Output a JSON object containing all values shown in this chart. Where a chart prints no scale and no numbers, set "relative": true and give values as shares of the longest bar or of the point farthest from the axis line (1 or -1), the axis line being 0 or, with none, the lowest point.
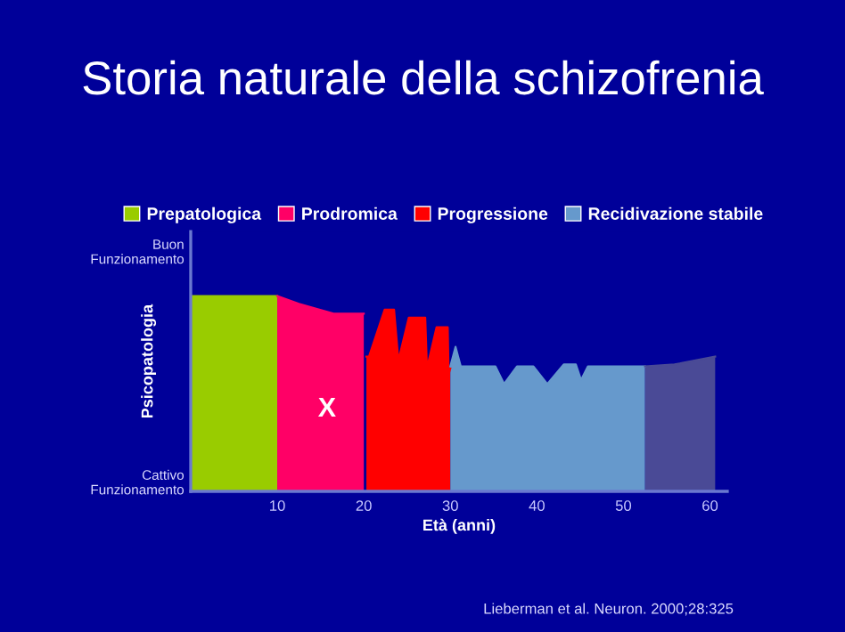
{
  "chart_data": {
    "type": "area",
    "title": "Storia naturale della schizofrenia",
    "xlabel": "Età (anni)",
    "ylabel": "Psicopatologia",
    "relative": true,
    "tick_labels": "x",
    "legend": "top",
    "grid": false,
    "xlim": [
      0,
      62
    ],
    "xticks": [
      {
        "value": 10,
        "label": "10"
      },
      {
        "value": 20,
        "label": "20"
      },
      {
        "value": 30,
        "label": "30"
      },
      {
        "value": 40,
        "label": "40"
      },
      {
        "value": 50,
        "label": "50"
      },
      {
        "value": 60,
        "label": "60"
      }
    ],
    "series": [
      {
        "name": "Prepatologica",
        "color": "#99cc00",
        "x": [
          0,
          10
        ],
        "values": [
          1,
          1
        ]
      },
      {
        "name": "Prodromica",
        "color": "#ff0066",
        "x": [
          10,
          12.5,
          16.5,
          20
        ],
        "values": [
          1,
          0.96,
          0.91,
          0.91
        ]
      },
      {
        "name": "Progressione",
        "color": "#ff0000",
        "x": [
          20.3,
          20.6,
          22.4,
          23.5,
          24,
          25.2,
          27.1,
          27.3,
          28.4,
          29.7,
          29.8,
          30
        ],
        "values": [
          0.69,
          0.69,
          0.93,
          0.93,
          0.67,
          0.89,
          0.89,
          0.63,
          0.84,
          0.84,
          0.6,
          0.63
        ]
      },
      {
        "name": "Recidivazione stabile",
        "color": "#6699cc",
        "x": [
          30,
          30.6,
          31.2,
          35.2,
          36.2,
          37.7,
          39.6,
          41.2,
          43.1,
          44.5,
          45.1,
          45.9,
          47.8,
          52.5
        ],
        "values": [
          0.64,
          0.74,
          0.64,
          0.64,
          0.55,
          0.64,
          0.64,
          0.55,
          0.65,
          0.65,
          0.57,
          0.64,
          0.64,
          0.64
        ]
      },
      {
        "color": "#4a4a96",
        "x": [
          52.5,
          55.9,
          60.6
        ],
        "values": [
          0.64,
          0.65,
          0.69
        ]
      }
    ],
    "annotations": [
      "X",
      "Buon\nFunzionamento",
      "Cattivo\nFunzionamento",
      "Lieberman et al. Neuron. 2000;28:325"
    ]
  }
}
